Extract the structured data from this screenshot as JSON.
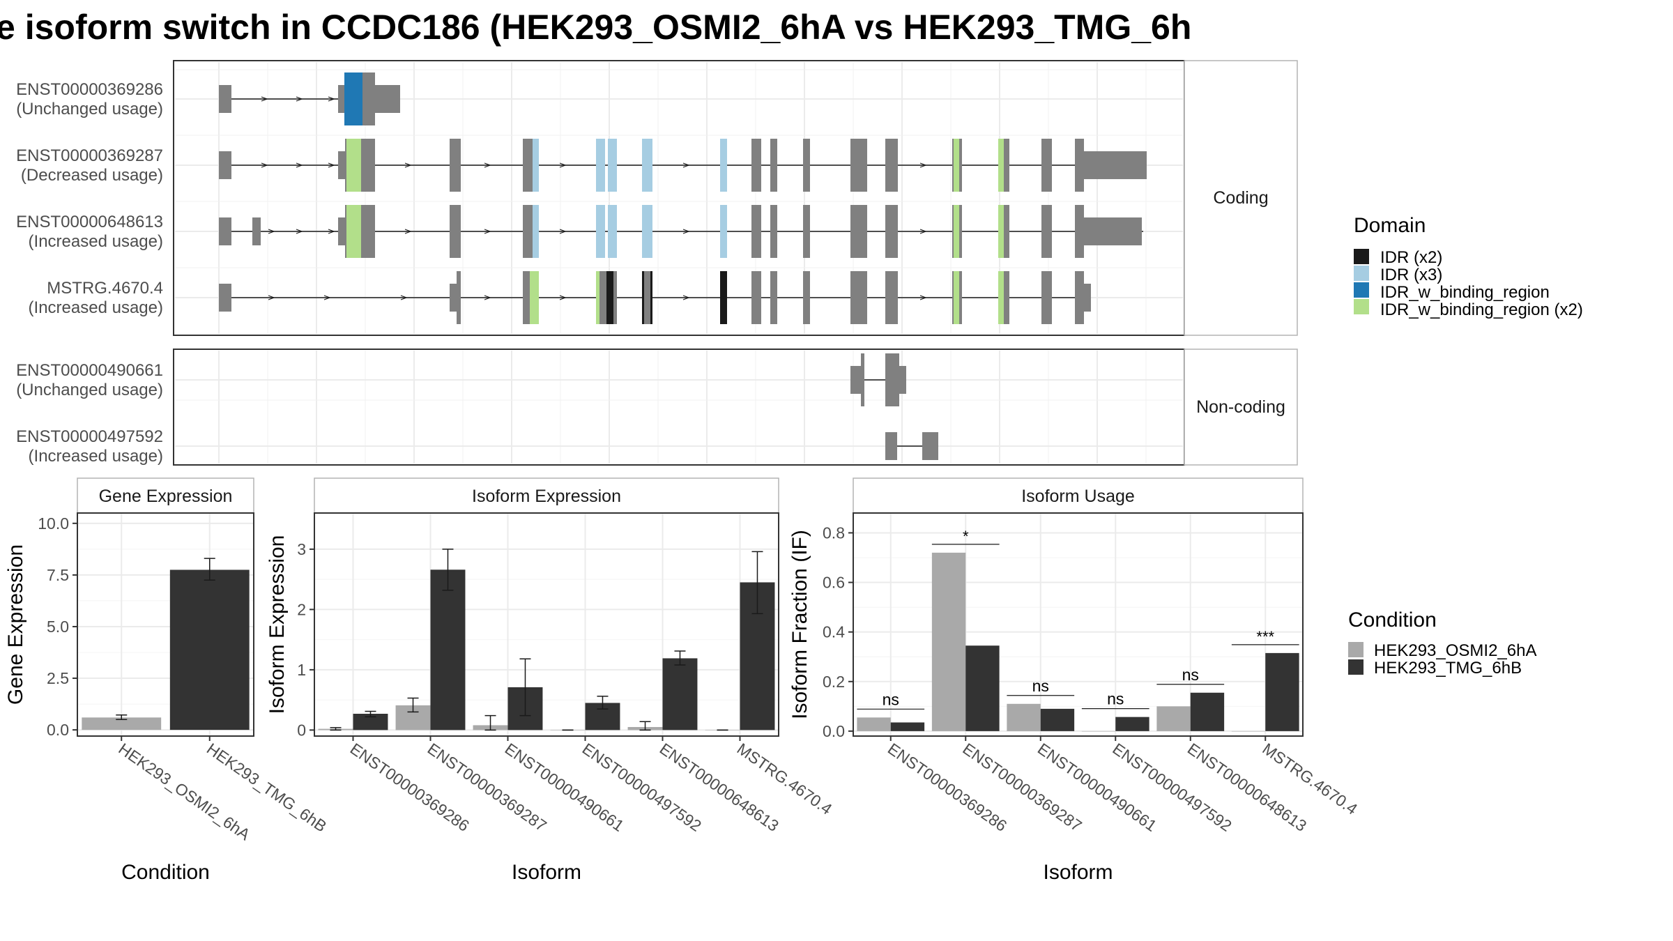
{
  "title": "e isoform switch in CCDC186 (HEK293_OSMI2_6hA vs HEK293_TMG_6h",
  "colors": {
    "exon": "#808080",
    "IDR_x2": "#1a1a1a",
    "IDR_x3": "#a6cde2",
    "IDR_w_binding_region": "#1f78b4",
    "IDR_w_binding_region_x2": "#b2df8a",
    "cond_A": "#a9a9a9",
    "cond_B": "#333333",
    "grid": "#ebebeb",
    "strip_bg": "#ffffff"
  },
  "transcript_panel": {
    "facets": [
      "Coding",
      "Non-coding"
    ],
    "transcripts": [
      {
        "id": "ENST00000369286",
        "usage": "(Unchanged usage)",
        "facet": "Coding"
      },
      {
        "id": "ENST00000369287",
        "usage": "(Decreased usage)",
        "facet": "Coding"
      },
      {
        "id": "ENST00000648613",
        "usage": "(Increased usage)",
        "facet": "Coding"
      },
      {
        "id": "MSTRG.4670.4",
        "usage": "(Increased usage)",
        "facet": "Coding"
      },
      {
        "id": "ENST00000490661",
        "usage": "(Unchanged usage)",
        "facet": "Non-coding"
      },
      {
        "id": "ENST00000497592",
        "usage": "(Increased usage)",
        "facet": "Non-coding"
      }
    ],
    "domain_legend": {
      "title": "Domain",
      "entries": [
        {
          "label": "IDR (x2)",
          "color_key": "IDR_x2"
        },
        {
          "label": "IDR (x3)",
          "color_key": "IDR_x3"
        },
        {
          "label": "IDR_w_binding_region",
          "color_key": "IDR_w_binding_region"
        },
        {
          "label": "IDR_w_binding_region (x2)",
          "color_key": "IDR_w_binding_region_x2"
        }
      ]
    }
  },
  "condition_legend": {
    "title": "Condition",
    "entries": [
      {
        "label": "HEK293_OSMI2_6hA",
        "color_key": "cond_A"
      },
      {
        "label": "HEK293_TMG_6hB",
        "color_key": "cond_B"
      }
    ]
  },
  "chart_data": [
    {
      "type": "bar",
      "title": "Gene Expression",
      "xlabel": "Condition",
      "ylabel": "Gene Expression",
      "categories": [
        "HEK293_OSMI2_6hA",
        "HEK293_TMG_6hB"
      ],
      "values": [
        0.6,
        7.75
      ],
      "errors": [
        [
          0.5,
          0.72
        ],
        [
          7.25,
          8.3
        ]
      ],
      "ylim": [
        -0.3,
        10.5
      ],
      "yticks": [
        "0.0",
        "2.5",
        "5.0",
        "7.5",
        "10.0"
      ],
      "grid": true
    },
    {
      "type": "bar",
      "title": "Isoform Expression",
      "xlabel": "Isoform",
      "ylabel": "Isoform Expression",
      "categories": [
        "ENST00000369286",
        "ENST00000369287",
        "ENST00000490661",
        "ENST00000497592",
        "ENST00000648613",
        "MSTRG.4670.4"
      ],
      "series": [
        {
          "name": "HEK293_OSMI2_6hA",
          "values": [
            0.02,
            0.41,
            0.08,
            0.0,
            0.05,
            0.0
          ],
          "errors": [
            [
              0.0,
              0.04
            ],
            [
              0.3,
              0.53
            ],
            [
              0.0,
              0.24
            ],
            [
              0.0,
              0.0
            ],
            [
              0.0,
              0.14
            ],
            [
              0.0,
              0.0
            ]
          ]
        },
        {
          "name": "HEK293_TMG_6hB",
          "values": [
            0.27,
            2.66,
            0.71,
            0.45,
            1.19,
            2.45
          ],
          "errors": [
            [
              0.22,
              0.31
            ],
            [
              2.32,
              3.0
            ],
            [
              0.24,
              1.18
            ],
            [
              0.35,
              0.56
            ],
            [
              1.08,
              1.31
            ],
            [
              1.93,
              2.96
            ]
          ]
        }
      ],
      "ylim": [
        -0.1,
        3.6
      ],
      "yticks": [
        "0",
        "1",
        "2",
        "3"
      ],
      "grid": true
    },
    {
      "type": "bar",
      "title": "Isoform Usage",
      "xlabel": "Isoform",
      "ylabel": "Isoform Fraction (IF)",
      "categories": [
        "ENST00000369286",
        "ENST00000369287",
        "ENST00000490661",
        "ENST00000497592",
        "ENST00000648613",
        "MSTRG.4670.4"
      ],
      "series": [
        {
          "name": "HEK293_OSMI2_6hA",
          "values": [
            0.055,
            0.72,
            0.11,
            0.0,
            0.1,
            0.0
          ]
        },
        {
          "name": "HEK293_TMG_6hB",
          "values": [
            0.035,
            0.345,
            0.09,
            0.057,
            0.155,
            0.315
          ]
        }
      ],
      "significance": [
        "ns",
        "*",
        "ns",
        "ns",
        "ns",
        "***"
      ],
      "ylim": [
        -0.02,
        0.88
      ],
      "yticks": [
        "0.0",
        "0.2",
        "0.4",
        "0.6",
        "0.8"
      ],
      "grid": true
    }
  ]
}
